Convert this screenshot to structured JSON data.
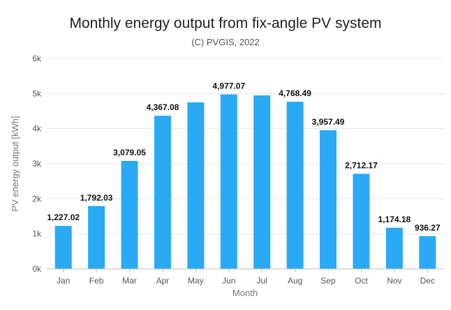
{
  "chart_data": {
    "type": "bar",
    "title": "Monthly energy output from fix-angle PV system",
    "subtitle": "(C) PVGIS, 2022",
    "xlabel": "Month",
    "ylabel": "PV energy output [kWh]",
    "categories": [
      "Jan",
      "Feb",
      "Mar",
      "Apr",
      "May",
      "Jun",
      "Jul",
      "Aug",
      "Sep",
      "Oct",
      "Nov",
      "Dec"
    ],
    "values": [
      1227.02,
      1792.03,
      3079.05,
      4367.08,
      4750,
      4977.07,
      4950,
      4768.49,
      3957.49,
      2712.17,
      1174.18,
      936.27
    ],
    "data_labels": [
      "1,227.02",
      "1,792.03",
      "3,079.05",
      "4,367.08",
      "",
      "4,977.07",
      "",
      "4,768.49",
      "3,957.49",
      "2,712.17",
      "1,174.18",
      "936.27"
    ],
    "ylim": [
      0,
      6000
    ],
    "yticks": [
      0,
      1000,
      2000,
      3000,
      4000,
      5000,
      6000
    ],
    "ytick_labels": [
      "0k",
      "1k",
      "2k",
      "3k",
      "4k",
      "5k",
      "6k"
    ],
    "grid": true,
    "bar_color": "#2aa9f5",
    "grid_color": "#e6e6e6"
  }
}
